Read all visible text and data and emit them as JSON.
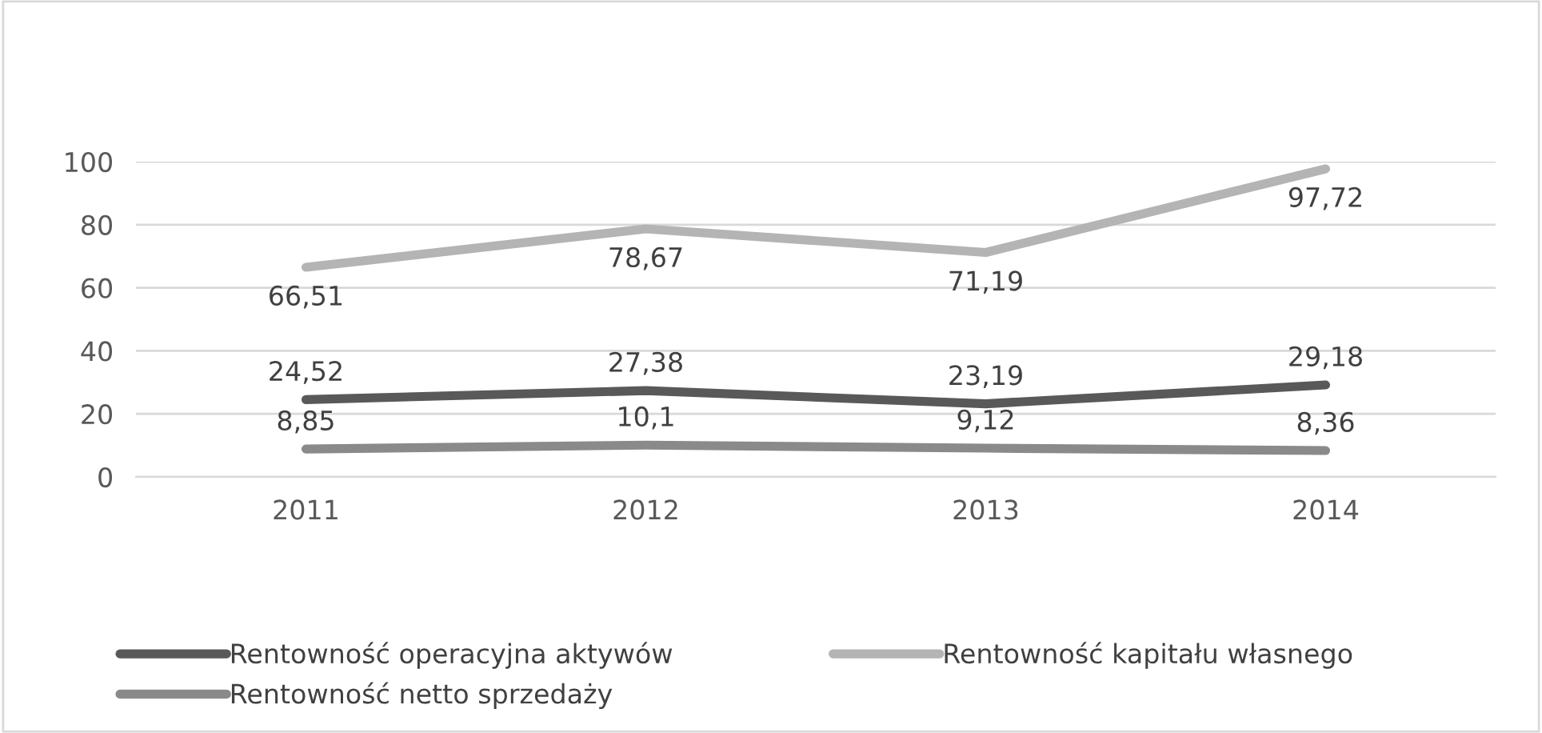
{
  "chart_data": {
    "type": "line",
    "categories": [
      "2011",
      "2012",
      "2013",
      "2014"
    ],
    "series": [
      {
        "name": "Rentowność operacyjna aktywów",
        "color": "#595959",
        "values": [
          24.52,
          27.38,
          23.19,
          29.18
        ],
        "value_labels": [
          "24,52",
          "27,38",
          "23,19",
          "29,18"
        ]
      },
      {
        "name": "Rentowność kapitału własnego",
        "color": "#b4b4b4",
        "values": [
          66.51,
          78.67,
          71.19,
          97.72
        ],
        "value_labels": [
          "66,51",
          "78,67",
          "71,19",
          "97,72"
        ]
      },
      {
        "name": "Rentowność netto sprzedaży",
        "color": "#8a8a8a",
        "values": [
          8.85,
          10.1,
          9.12,
          8.36
        ],
        "value_labels": [
          "8,85",
          "10,1",
          "9,12",
          "8,36"
        ]
      }
    ],
    "ylim": [
      0,
      100
    ],
    "yticks": [
      0,
      20,
      40,
      60,
      80,
      100
    ],
    "grid": "y",
    "legend": "bottom",
    "marker": "none",
    "line_style": "solid"
  }
}
